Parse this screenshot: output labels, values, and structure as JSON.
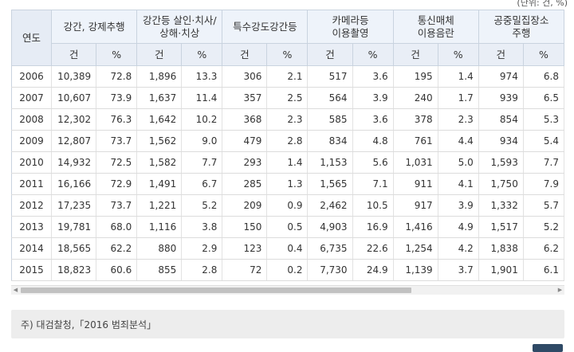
{
  "unit_note": "(단위: 건, %)",
  "table": {
    "year_header": "연도",
    "groups": [
      {
        "line1": "강간, 강제추행",
        "line2": ""
      },
      {
        "line1": "강간등 살인·치사/",
        "line2": "상해·치상"
      },
      {
        "line1": "특수강도강간등",
        "line2": ""
      },
      {
        "line1": "카메라등",
        "line2": "이용촬영"
      },
      {
        "line1": "통신매체",
        "line2": "이용음란"
      },
      {
        "line1": "공중밀집장소",
        "line2": "주행"
      }
    ],
    "sub_count": "건",
    "sub_percent": "%",
    "rows": [
      [
        "2006",
        "10,389",
        "72.8",
        "1,896",
        "13.3",
        "306",
        "2.1",
        "517",
        "3.6",
        "195",
        "1.4",
        "974",
        "6.8"
      ],
      [
        "2007",
        "10,607",
        "73.9",
        "1,637",
        "11.4",
        "357",
        "2.5",
        "564",
        "3.9",
        "240",
        "1.7",
        "939",
        "6.5"
      ],
      [
        "2008",
        "12,302",
        "76.3",
        "1,642",
        "10.2",
        "368",
        "2.3",
        "585",
        "3.6",
        "378",
        "2.3",
        "854",
        "5.3"
      ],
      [
        "2009",
        "12,807",
        "73.7",
        "1,562",
        "9.0",
        "479",
        "2.8",
        "834",
        "4.8",
        "761",
        "4.4",
        "934",
        "5.4"
      ],
      [
        "2010",
        "14,932",
        "72.5",
        "1,582",
        "7.7",
        "293",
        "1.4",
        "1,153",
        "5.6",
        "1,031",
        "5.0",
        "1,593",
        "7.7"
      ],
      [
        "2011",
        "16,166",
        "72.9",
        "1,491",
        "6.7",
        "285",
        "1.3",
        "1,565",
        "7.1",
        "911",
        "4.1",
        "1,750",
        "7.9"
      ],
      [
        "2012",
        "17,235",
        "73.7",
        "1,221",
        "5.2",
        "209",
        "0.9",
        "2,462",
        "10.5",
        "917",
        "3.9",
        "1,332",
        "5.7"
      ],
      [
        "2013",
        "19,781",
        "68.0",
        "1,116",
        "3.8",
        "150",
        "0.5",
        "4,903",
        "16.9",
        "1,416",
        "4.9",
        "1,517",
        "5.2"
      ],
      [
        "2014",
        "18,565",
        "62.2",
        "880",
        "2.9",
        "123",
        "0.4",
        "6,735",
        "22.6",
        "1,254",
        "4.2",
        "1,838",
        "6.2"
      ],
      [
        "2015",
        "18,823",
        "60.6",
        "855",
        "2.8",
        "72",
        "0.2",
        "7,730",
        "24.9",
        "1,139",
        "3.7",
        "1,901",
        "6.1"
      ]
    ]
  },
  "note": {
    "text": "주) 대검찰청,「2016 범죄분석」"
  },
  "scrollbar": {
    "left_arrow_icon": "◀",
    "right_arrow_icon": "▶"
  }
}
